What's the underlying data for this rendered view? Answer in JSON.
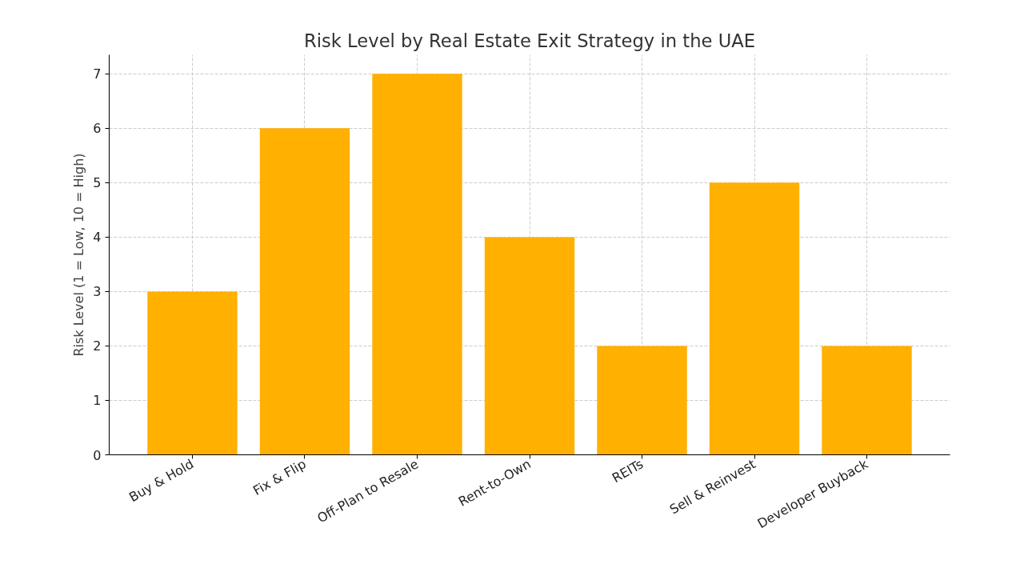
{
  "chart_data": {
    "type": "bar",
    "title": "Risk Level by Real Estate Exit Strategy in the UAE",
    "ylabel": "Risk Level (1 = Low, 10 = High)",
    "categories": [
      "Buy & Hold",
      "Fix & Flip",
      "Off-Plan to Resale",
      "Rent-to-Own",
      "REITs",
      "Sell & Reinvest",
      "Developer Buyback"
    ],
    "values": [
      3,
      6,
      7,
      4,
      2,
      5,
      2
    ],
    "color": "#ffb000",
    "ylim": [
      0,
      7.35
    ],
    "yticks": [
      0,
      1,
      2,
      3,
      4,
      5,
      6,
      7
    ],
    "grid": true
  }
}
